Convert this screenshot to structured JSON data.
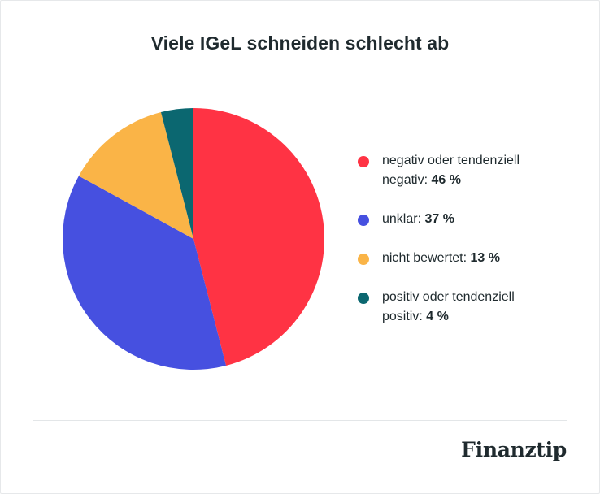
{
  "title": "Viele IGeL schneiden schlecht ab",
  "brand": "Finanztip",
  "chart_data": {
    "type": "pie",
    "title": "Viele IGeL schneiden schlecht ab",
    "legend_position": "right",
    "slices": [
      {
        "label_line1": "negativ oder tendenziell",
        "label_line2": "negativ: ",
        "value_text": "46 %",
        "value": 46,
        "color": "#ff3344"
      },
      {
        "label_line1": "unklar: ",
        "label_line2": "",
        "value_text": "37 %",
        "value": 37,
        "color": "#4650e0"
      },
      {
        "label_line1": "nicht bewertet: ",
        "label_line2": "",
        "value_text": "13 %",
        "value": 13,
        "color": "#fab447"
      },
      {
        "label_line1": "positiv oder tendenziell",
        "label_line2": "positiv: ",
        "value_text": "4 %",
        "value": 4,
        "color": "#0b6770"
      }
    ]
  }
}
